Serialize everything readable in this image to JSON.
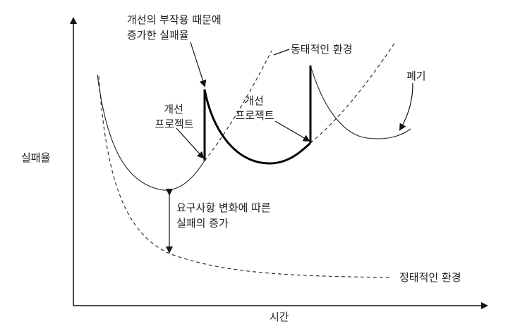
{
  "axes": {
    "y_label": "실패율",
    "x_label": "시간"
  },
  "annotations": {
    "upgrade_side_effect": [
      "개선의 부작용 때문에",
      "증가한 실패율"
    ],
    "dynamic_env": "동태적인 환경",
    "improvement_project_1": [
      "개선",
      "프로젝트"
    ],
    "improvement_project_2": [
      "개선",
      "프로젝트"
    ],
    "retirement": "폐기",
    "requirement_change": [
      "요구사항 변화에 따른",
      "실패의 증가"
    ],
    "static_env": "정태적인 환경"
  }
}
